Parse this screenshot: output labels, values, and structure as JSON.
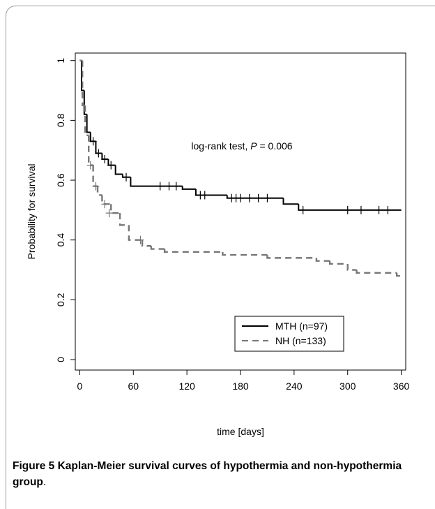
{
  "chart_data": {
    "type": "step",
    "x_label": "time [days]",
    "y_label": "Probability for survival",
    "annotation": {
      "prefix": "log-rank test, ",
      "italic": "P",
      "suffix": " = 0.006"
    },
    "xlim": [
      -5,
      365
    ],
    "xticks": [
      0,
      60,
      120,
      180,
      240,
      300,
      360
    ],
    "ylim": [
      -0.035,
      1.025
    ],
    "yticks": [
      0,
      0.2,
      0.4,
      0.6,
      0.8,
      1
    ],
    "legend": "bottom-right",
    "series": [
      {
        "name": "MTH (n=97)",
        "color": "#000000",
        "linestyle": "solid",
        "x": [
          0,
          2,
          5,
          8,
          12,
          18,
          25,
          32,
          40,
          48,
          57,
          115,
          130,
          165,
          228,
          245,
          360
        ],
        "values": [
          1,
          0.9,
          0.82,
          0.76,
          0.73,
          0.69,
          0.67,
          0.65,
          0.62,
          0.61,
          0.58,
          0.57,
          0.55,
          0.54,
          0.52,
          0.5,
          0.5
        ],
        "censored": {
          "x": [
            15,
            21,
            28,
            35,
            52,
            90,
            100,
            108,
            135,
            140,
            170,
            175,
            180,
            190,
            200,
            210,
            250,
            300,
            315,
            335,
            345
          ],
          "values": [
            0.73,
            0.69,
            0.67,
            0.65,
            0.61,
            0.58,
            0.58,
            0.58,
            0.55,
            0.55,
            0.54,
            0.54,
            0.54,
            0.54,
            0.54,
            0.54,
            0.5,
            0.5,
            0.5,
            0.5,
            0.5
          ]
        }
      },
      {
        "name": "NH (n=133)",
        "color": "#777777",
        "linestyle": "dashed",
        "x": [
          0,
          3,
          6,
          10,
          15,
          20,
          25,
          35,
          45,
          55,
          70,
          80,
          95,
          160,
          210,
          265,
          280,
          300,
          310,
          355,
          360
        ],
        "values": [
          1,
          0.85,
          0.75,
          0.65,
          0.58,
          0.55,
          0.52,
          0.49,
          0.45,
          0.4,
          0.38,
          0.37,
          0.36,
          0.35,
          0.34,
          0.33,
          0.32,
          0.3,
          0.29,
          0.28,
          0.28
        ],
        "censored": {
          "x": [
            12,
            18,
            28,
            33,
            68
          ],
          "values": [
            0.65,
            0.58,
            0.52,
            0.49,
            0.4
          ]
        }
      }
    ]
  },
  "caption": {
    "label": "Figure 5",
    "text": " Kaplan-Meier survival curves of hypothermia and non-hypothermia group",
    "end": "."
  }
}
